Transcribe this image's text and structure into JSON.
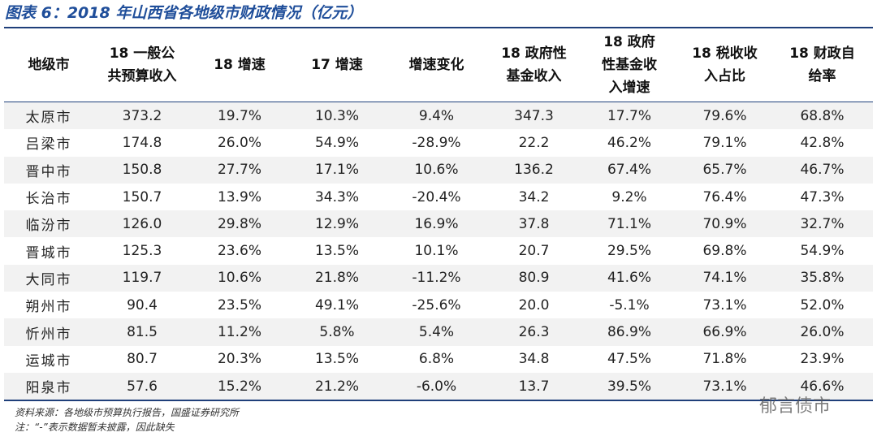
{
  "title": "图表 6：2018 年山西省各地级市财政情况（亿元）",
  "table": {
    "header": [
      [
        "地级市"
      ],
      [
        "18 一般公",
        "共预算收入"
      ],
      [
        "18 增速"
      ],
      [
        "17 增速"
      ],
      [
        "增速变化"
      ],
      [
        "18 政府性",
        "基金收入"
      ],
      [
        "18 政府",
        "性基金收",
        "入增速"
      ],
      [
        "18 税收收",
        "入占比"
      ],
      [
        "18 财政自",
        "给率"
      ]
    ],
    "rows": [
      [
        "太原市",
        "373.2",
        "19.7%",
        "10.3%",
        "9.4%",
        "347.3",
        "17.7%",
        "79.6%",
        "68.8%"
      ],
      [
        "吕梁市",
        "174.8",
        "26.0%",
        "54.9%",
        "-28.9%",
        "22.2",
        "46.2%",
        "79.1%",
        "42.8%"
      ],
      [
        "晋中市",
        "150.8",
        "27.7%",
        "17.1%",
        "10.6%",
        "136.2",
        "67.4%",
        "65.7%",
        "46.7%"
      ],
      [
        "长治市",
        "150.7",
        "13.9%",
        "34.3%",
        "-20.4%",
        "34.2",
        "9.2%",
        "76.4%",
        "47.3%"
      ],
      [
        "临汾市",
        "126.0",
        "29.8%",
        "12.9%",
        "16.9%",
        "37.8",
        "71.1%",
        "70.9%",
        "32.7%"
      ],
      [
        "晋城市",
        "125.3",
        "23.6%",
        "13.5%",
        "10.1%",
        "20.7",
        "29.5%",
        "69.8%",
        "54.9%"
      ],
      [
        "大同市",
        "119.7",
        "10.6%",
        "21.8%",
        "-11.2%",
        "80.9",
        "41.6%",
        "74.1%",
        "35.8%"
      ],
      [
        "朔州市",
        "90.4",
        "23.5%",
        "49.1%",
        "-25.6%",
        "20.0",
        "-5.1%",
        "73.1%",
        "52.0%"
      ],
      [
        "忻州市",
        "81.5",
        "11.2%",
        "5.8%",
        "5.4%",
        "26.3",
        "86.9%",
        "66.9%",
        "26.0%"
      ],
      [
        "运城市",
        "80.7",
        "20.3%",
        "13.5%",
        "6.8%",
        "34.8",
        "47.5%",
        "71.8%",
        "23.9%"
      ],
      [
        "阳泉市",
        "57.6",
        "15.2%",
        "21.2%",
        "-6.0%",
        "13.7",
        "39.5%",
        "73.1%",
        "46.6%"
      ]
    ]
  },
  "notes": [
    "资料来源：各地级市预算执行报告，国盛证券研究所",
    "注：“-”表示数据暂未披露，因此缺失"
  ],
  "watermark": "郁言债市"
}
